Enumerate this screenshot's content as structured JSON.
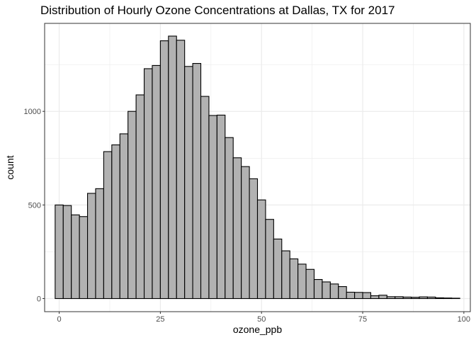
{
  "chart_data": {
    "type": "bar",
    "title": "Distribution of Hourly Ozone Concentrations at Dallas, TX for 2017",
    "xlabel": "ozone_ppb",
    "ylabel": "count",
    "xlim": [
      -3.6,
      101.6
    ],
    "ylim": [
      -70,
      1470
    ],
    "x_ticks": [
      0,
      25,
      50,
      75,
      100
    ],
    "x_tick_labels": [
      "0",
      "25",
      "50",
      "75",
      "100"
    ],
    "y_ticks": [
      0,
      500,
      1000
    ],
    "y_tick_labels": [
      "0",
      "500",
      "1000"
    ],
    "bin_width": 2,
    "bin_centers": [
      0,
      2,
      4,
      6,
      8,
      10,
      12,
      14,
      16,
      18,
      20,
      22,
      24,
      26,
      28,
      30,
      32,
      34,
      36,
      38,
      40,
      42,
      44,
      46,
      48,
      50,
      52,
      54,
      56,
      58,
      60,
      62,
      64,
      66,
      68,
      70,
      72,
      74,
      76,
      78,
      80,
      82,
      84,
      86,
      88,
      90,
      92,
      94,
      96,
      98
    ],
    "values": [
      500,
      497,
      447,
      438,
      562,
      587,
      785,
      821,
      880,
      1000,
      1088,
      1228,
      1245,
      1377,
      1402,
      1380,
      1240,
      1256,
      1080,
      978,
      980,
      860,
      752,
      705,
      640,
      527,
      423,
      318,
      255,
      212,
      184,
      156,
      102,
      89,
      78,
      64,
      34,
      33,
      32,
      15,
      18,
      10,
      10,
      8,
      7,
      9,
      8,
      4,
      3,
      2
    ],
    "bar_fill": "#b2b2b2",
    "bar_stroke": "#000000",
    "grid": true,
    "grid_color": "#ebebeb",
    "panel_border": "#333333"
  }
}
